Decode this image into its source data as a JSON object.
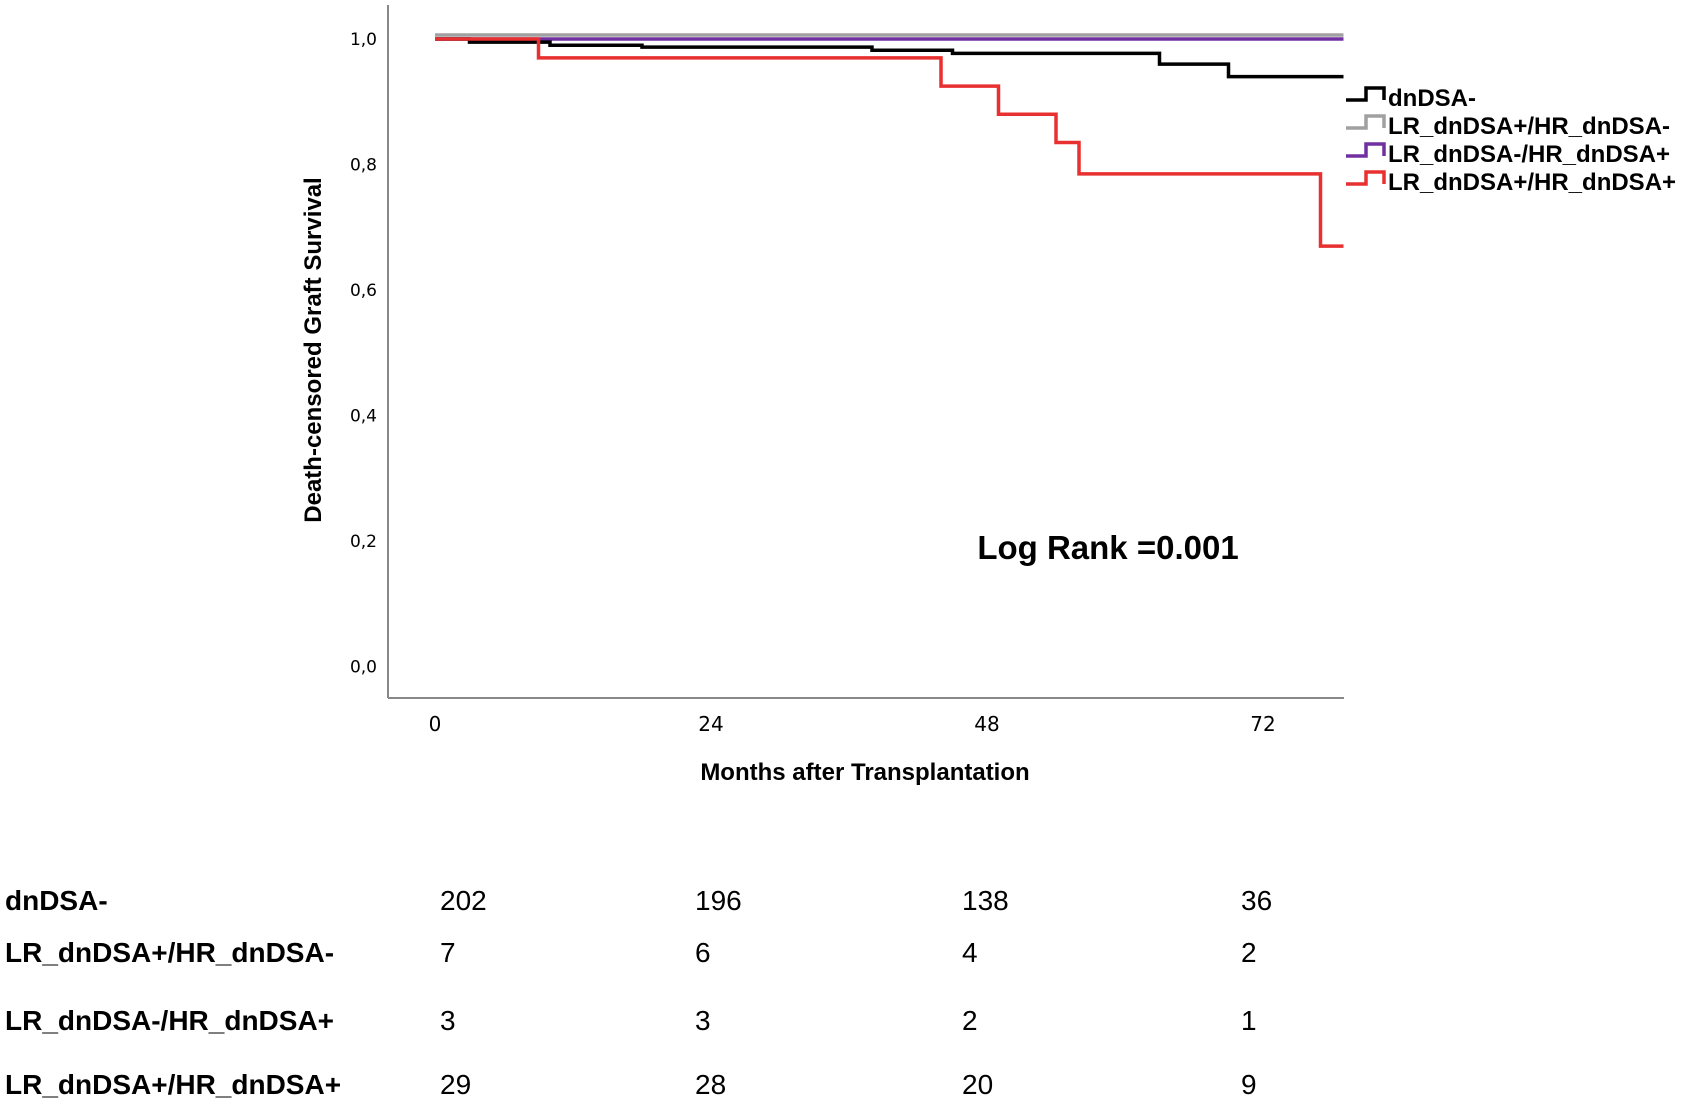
{
  "chart_data": {
    "type": "line",
    "subtype": "kaplan-meier",
    "title": "",
    "xlabel": "Months after Transplantation",
    "ylabel": "Death-censored Graft Survival",
    "xlim": [
      -3,
      82
    ],
    "ylim": [
      -0.05,
      1.05
    ],
    "x_ticks": [
      0,
      24,
      48,
      72
    ],
    "x_tick_labels": [
      "0",
      "24",
      "48",
      "72"
    ],
    "y_ticks": [
      0.0,
      0.2,
      0.4,
      0.6,
      0.8,
      1.0
    ],
    "y_tick_labels": [
      "0,0",
      "0,2",
      "0,4",
      "0,6",
      "0,8",
      "1,0"
    ],
    "grid": false,
    "legend_position": "right",
    "annotation": "Log Rank =0.001",
    "series": [
      {
        "name": "dnDSA-",
        "color": "#000000",
        "steps": [
          [
            0,
            1.0
          ],
          [
            3,
            0.995
          ],
          [
            10,
            0.99
          ],
          [
            18,
            0.987
          ],
          [
            38,
            0.982
          ],
          [
            45,
            0.977
          ],
          [
            63,
            0.96
          ],
          [
            69,
            0.94
          ],
          [
            79,
            0.94
          ]
        ]
      },
      {
        "name": "LR_dnDSA+/HR_dnDSA-",
        "color": "#a0a0a0",
        "steps": [
          [
            0,
            1.0
          ],
          [
            79,
            1.0
          ]
        ]
      },
      {
        "name": "LR_dnDSA-/HR_dnDSA+",
        "color": "#7030a0",
        "steps": [
          [
            0,
            1.0
          ],
          [
            79,
            1.0
          ]
        ]
      },
      {
        "name": "LR_dnDSA+/HR_dnDSA+",
        "color": "#e83030",
        "steps": [
          [
            0,
            1.0
          ],
          [
            9,
            0.97
          ],
          [
            44,
            0.925
          ],
          [
            49,
            0.88
          ],
          [
            54,
            0.835
          ],
          [
            56,
            0.785
          ],
          [
            77,
            0.67
          ],
          [
            79,
            0.67
          ]
        ]
      }
    ],
    "risk_table": {
      "rows": [
        {
          "label": "dnDSA-",
          "values": [
            "202",
            "196",
            "138",
            "36"
          ]
        },
        {
          "label": "LR_dnDSA+/HR_dnDSA-",
          "values": [
            "7",
            "6",
            "4",
            "2"
          ]
        },
        {
          "label": "LR_dnDSA-/HR_dnDSA+",
          "values": [
            "3",
            "3",
            "2",
            "1"
          ]
        },
        {
          "label": "LR_dnDSA+/HR_dnDSA+",
          "values": [
            "29",
            "28",
            "20",
            "9"
          ]
        }
      ]
    }
  }
}
